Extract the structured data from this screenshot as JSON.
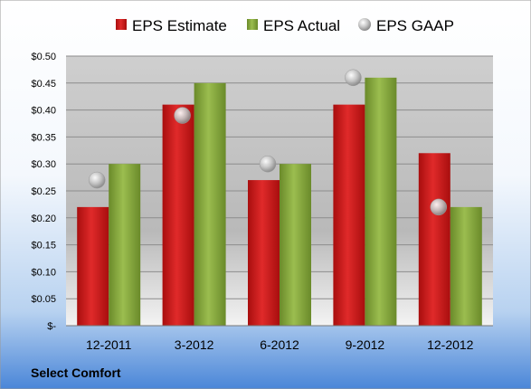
{
  "chart_data": {
    "type": "bar",
    "categories": [
      "12-2011",
      "3-2012",
      "6-2012",
      "9-2012",
      "12-2012"
    ],
    "series": [
      {
        "name": "EPS Estimate",
        "type": "bar",
        "color": "#cc1f1f",
        "values": [
          0.22,
          0.41,
          0.27,
          0.41,
          0.32
        ]
      },
      {
        "name": "EPS Actual",
        "type": "bar",
        "color": "#86a83c",
        "values": [
          0.3,
          0.45,
          0.3,
          0.46,
          0.22
        ]
      },
      {
        "name": "EPS GAAP",
        "type": "scatter",
        "color": "#b8b8b8",
        "values": [
          0.27,
          0.39,
          0.3,
          0.46,
          0.22
        ]
      }
    ],
    "ylim": [
      0,
      0.5
    ],
    "yticks": [
      0,
      0.05,
      0.1,
      0.15,
      0.2,
      0.25,
      0.3,
      0.35,
      0.4,
      0.45,
      0.5
    ],
    "ytick_labels": [
      "$-",
      "$0.05",
      "$0.10",
      "$0.15",
      "$0.20",
      "$0.25",
      "$0.30",
      "$0.35",
      "$0.40",
      "$0.45",
      "$0.50"
    ],
    "grid": true,
    "legend_position": "top",
    "footer": "Select Comfort"
  }
}
